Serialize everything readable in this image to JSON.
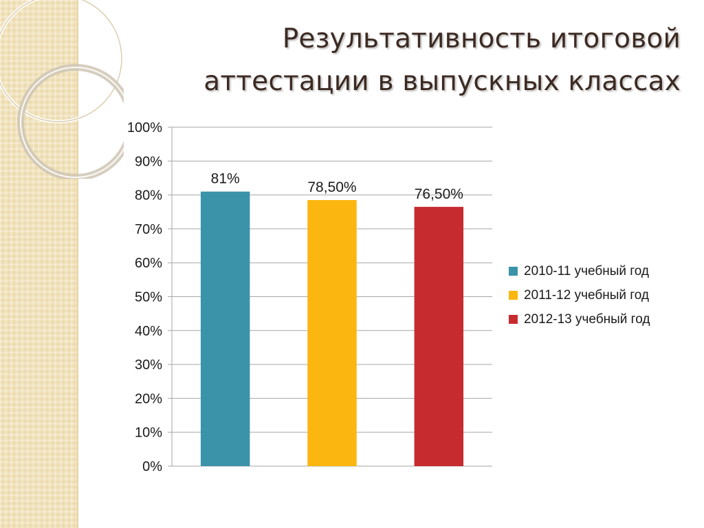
{
  "slide": {
    "title": "Результативность итоговой аттестации в выпускных классах",
    "title_lines": [
      "Результативность итоговой",
      "аттестации в выпускных классах"
    ]
  },
  "colors": {
    "side_band": "#f1e2ba",
    "title_text": "#3c2a22",
    "grid": "#a6a6a6"
  },
  "chart_data": {
    "type": "bar",
    "categories": [
      "2010-11 учебный год",
      "2011-12 учебный год",
      "2012-13 учебный год"
    ],
    "values": [
      81,
      78.5,
      76.5
    ],
    "data_labels": [
      "81%",
      "78,50%",
      "76,50%"
    ],
    "colors": [
      "#3b93a9",
      "#fbb60f",
      "#c62b30"
    ],
    "ylim": [
      0,
      100
    ],
    "ytick_step": 10,
    "ytick_labels": [
      "0%",
      "10%",
      "20%",
      "30%",
      "40%",
      "50%",
      "60%",
      "70%",
      "80%",
      "90%",
      "100%"
    ],
    "grid": true,
    "legend": {
      "position": "right",
      "entries": [
        "2010-11 учебный год",
        "2011-12 учебный год",
        "2012-13 учебный год"
      ]
    }
  }
}
